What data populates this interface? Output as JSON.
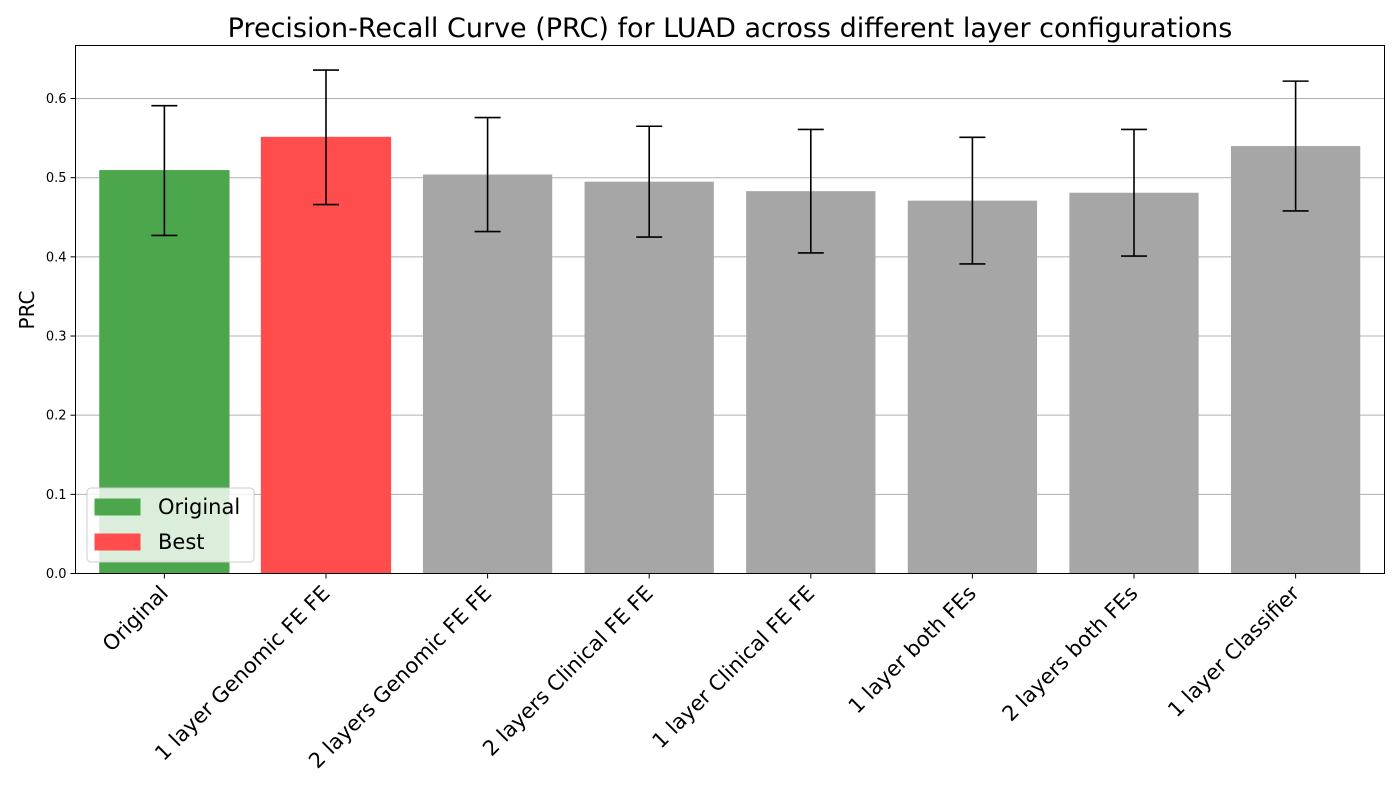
{
  "chart_data": {
    "type": "bar",
    "title": "Precision-Recall Curve (PRC) for LUAD across different layer configurations",
    "xlabel": "",
    "ylabel": "PRC",
    "ylim": [
      0,
      0.667
    ],
    "yticks": [
      0.0,
      0.1,
      0.2,
      0.3,
      0.4,
      0.5,
      0.6
    ],
    "ytick_labels": [
      "0.0",
      "0.1",
      "0.2",
      "0.3",
      "0.4",
      "0.5",
      "0.6"
    ],
    "grid": "y",
    "categories": [
      "Original",
      "1 layer Genomic FE FE",
      "2 layers Genomic FE FE",
      "2 layers Clinical FE FE",
      "1 layer Clinical FE FE",
      "1 layer both FEs",
      "2 layers both FEs",
      "1 layer Classifier"
    ],
    "values": [
      0.509,
      0.551,
      0.504,
      0.495,
      0.483,
      0.471,
      0.481,
      0.54
    ],
    "errors": [
      0.082,
      0.085,
      0.072,
      0.07,
      0.078,
      0.08,
      0.08,
      0.082
    ],
    "bar_colors": [
      "#4ca64c",
      "#ff4c4c",
      "#a6a6a6",
      "#a6a6a6",
      "#a6a6a6",
      "#a6a6a6",
      "#a6a6a6",
      "#a6a6a6"
    ],
    "legend": {
      "placement": "lower-left",
      "entries": [
        {
          "label": "Original",
          "color": "#4ca64c"
        },
        {
          "label": "Best",
          "color": "#ff4c4c"
        }
      ]
    }
  }
}
